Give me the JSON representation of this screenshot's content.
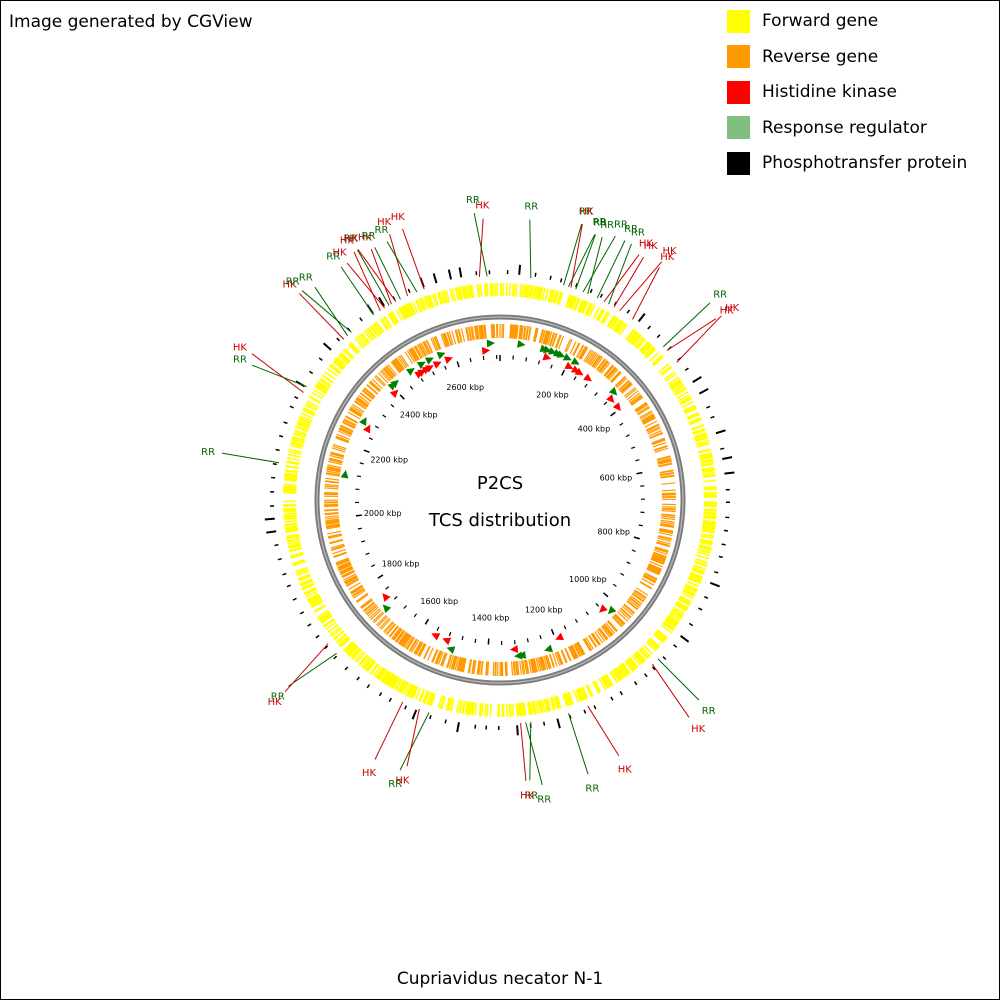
{
  "credit": "Image generated by CGView",
  "organism": "Cupriavidus necator N-1",
  "center": {
    "line1": "P2CS",
    "line2": "TCS distribution"
  },
  "genome_length_kbp": 2730,
  "legend": [
    {
      "label": "Forward gene",
      "color": "#ffff00"
    },
    {
      "label": "Reverse gene",
      "color": "#ff9900"
    },
    {
      "label": "Histidine kinase",
      "color": "#ff0000"
    },
    {
      "label": "Response regulator",
      "color": "#7fbf7f"
    },
    {
      "label": "Phosphotransfer protein",
      "color": "#000000"
    }
  ],
  "colors": {
    "hk": "#ff0000",
    "rr": "#008000",
    "hk_label": "#cc0000",
    "rr_label": "#006600",
    "backbone": "#808080"
  },
  "tick_labels": [
    "200 kbp",
    "400 kbp",
    "600 kbp",
    "800 kbp",
    "1000 kbp",
    "1200 kbp",
    "1400 kbp",
    "1600 kbp",
    "1800 kbp",
    "2000 kbp",
    "2200 kbp",
    "2400 kbp",
    "2600 kbp"
  ],
  "features": [
    {
      "pos_kbp": 60,
      "type": "RR"
    },
    {
      "pos_kbp": 125,
      "type": "RR"
    },
    {
      "pos_kbp": 135,
      "type": "RR"
    },
    {
      "pos_kbp": 140,
      "type": "HK"
    },
    {
      "pos_kbp": 150,
      "type": "RR"
    },
    {
      "pos_kbp": 165,
      "type": "RR"
    },
    {
      "pos_kbp": 175,
      "type": "RR"
    },
    {
      "pos_kbp": 195,
      "type": "RR"
    },
    {
      "pos_kbp": 210,
      "type": "HK"
    },
    {
      "pos_kbp": 220,
      "type": "RR"
    },
    {
      "pos_kbp": 232,
      "type": "HK"
    },
    {
      "pos_kbp": 245,
      "type": "HK"
    },
    {
      "pos_kbp": 275,
      "type": "HK"
    },
    {
      "pos_kbp": 355,
      "type": "RR"
    },
    {
      "pos_kbp": 365,
      "type": "HK"
    },
    {
      "pos_kbp": 395,
      "type": "HK"
    },
    {
      "pos_kbp": 1025,
      "type": "RR"
    },
    {
      "pos_kbp": 1040,
      "type": "HK"
    },
    {
      "pos_kbp": 1190,
      "type": "HK"
    },
    {
      "pos_kbp": 1230,
      "type": "RR"
    },
    {
      "pos_kbp": 1305,
      "type": "RR"
    },
    {
      "pos_kbp": 1315,
      "type": "RR"
    },
    {
      "pos_kbp": 1325,
      "type": "HK"
    },
    {
      "pos_kbp": 1505,
      "type": "RR"
    },
    {
      "pos_kbp": 1525,
      "type": "HK"
    },
    {
      "pos_kbp": 1560,
      "type": "HK"
    },
    {
      "pos_kbp": 1720,
      "type": "RR"
    },
    {
      "pos_kbp": 1745,
      "type": "HK"
    },
    {
      "pos_kbp": 2120,
      "type": "RR"
    },
    {
      "pos_kbp": 2265,
      "type": "HK"
    },
    {
      "pos_kbp": 2278,
      "type": "RR"
    },
    {
      "pos_kbp": 2395,
      "type": "HK"
    },
    {
      "pos_kbp": 2405,
      "type": "RR"
    },
    {
      "pos_kbp": 2415,
      "type": "RR"
    },
    {
      "pos_kbp": 2470,
      "type": "RR"
    },
    {
      "pos_kbp": 2485,
      "type": "HK"
    },
    {
      "pos_kbp": 2495,
      "type": "HK"
    },
    {
      "pos_kbp": 2505,
      "type": "RR"
    },
    {
      "pos_kbp": 2510,
      "type": "HK"
    },
    {
      "pos_kbp": 2520,
      "type": "HK"
    },
    {
      "pos_kbp": 2530,
      "type": "RR"
    },
    {
      "pos_kbp": 2545,
      "type": "HK"
    },
    {
      "pos_kbp": 2565,
      "type": "RR"
    },
    {
      "pos_kbp": 2580,
      "type": "HK"
    },
    {
      "pos_kbp": 2690,
      "type": "HK"
    },
    {
      "pos_kbp": 2705,
      "type": "RR"
    }
  ]
}
